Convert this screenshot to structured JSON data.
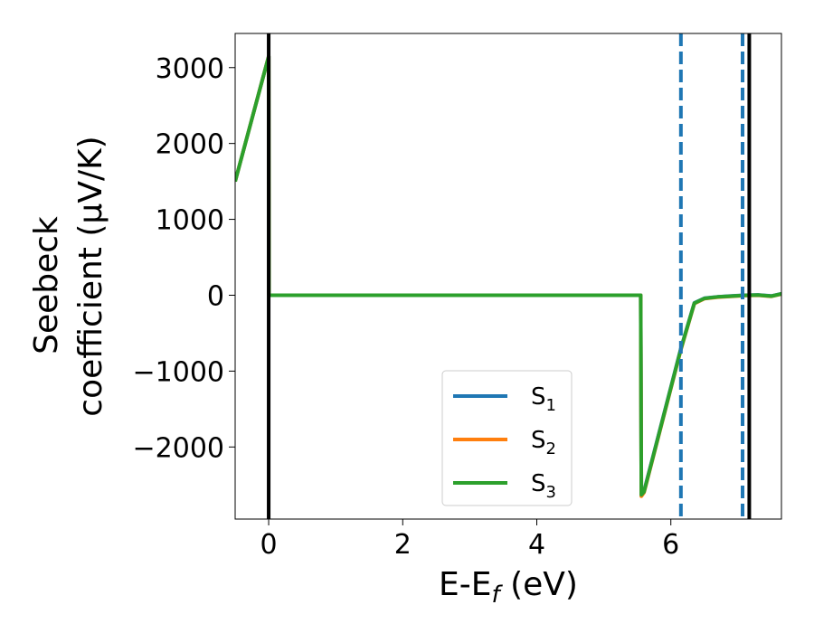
{
  "chart_data": {
    "type": "line",
    "xlabel": "E-E",
    "xlabel_sub": "f",
    "xlabel_unit": " (eV)",
    "ylabel_line1": "Seebeck",
    "ylabel_line2": "coefficient  (μV/K)",
    "xlim": [
      -0.5,
      7.65
    ],
    "ylim": [
      -2950,
      3450
    ],
    "xticks": [
      0,
      2,
      4,
      6
    ],
    "xtick_labels": [
      "0",
      "2",
      "4",
      "6"
    ],
    "yticks": [
      -2000,
      -1000,
      0,
      1000,
      2000,
      3000
    ],
    "ytick_labels": [
      "−2000",
      "−1000",
      "0",
      "1000",
      "2000",
      "3000"
    ],
    "grid": false,
    "legend_position": "lower-center",
    "series": [
      {
        "name": "S",
        "sub": "1",
        "color": "#1f77b4",
        "x": [
          -0.5,
          0.0,
          0.005,
          5.55,
          5.56,
          5.6,
          6.15,
          6.35,
          6.5,
          6.7,
          6.9,
          7.1,
          7.3,
          7.5,
          7.65
        ],
        "y": [
          1500,
          3150,
          0,
          0,
          -2620,
          -2580,
          -700,
          -100,
          -40,
          -20,
          -10,
          0,
          5,
          -10,
          20
        ]
      },
      {
        "name": "S",
        "sub": "2",
        "color": "#ff7f0e",
        "x": [
          -0.5,
          0.0,
          0.005,
          5.55,
          5.56,
          5.6,
          6.15,
          6.35,
          6.5,
          6.7,
          6.9,
          7.1,
          7.3,
          7.5,
          7.65
        ],
        "y": [
          1500,
          3150,
          0,
          0,
          -2650,
          -2600,
          -720,
          -110,
          -45,
          -25,
          -15,
          -5,
          0,
          -15,
          15
        ]
      },
      {
        "name": "S",
        "sub": "3",
        "color": "#2ca02c",
        "x": [
          -0.5,
          0.0,
          0.005,
          5.55,
          5.56,
          5.6,
          6.15,
          6.35,
          6.5,
          6.7,
          6.9,
          7.1,
          7.3,
          7.5,
          7.65
        ],
        "y": [
          1500,
          3150,
          0,
          0,
          -2630,
          -2590,
          -710,
          -105,
          -42,
          -22,
          -12,
          -2,
          3,
          -12,
          18
        ]
      }
    ],
    "vlines": [
      {
        "x": 0.0,
        "style": "solid",
        "color": "#000000"
      },
      {
        "x": 6.15,
        "style": "dashed",
        "color": "#1f77b4"
      },
      {
        "x": 7.07,
        "style": "dashed",
        "color": "#1f77b4"
      },
      {
        "x": 7.17,
        "style": "solid",
        "color": "#000000"
      }
    ]
  }
}
